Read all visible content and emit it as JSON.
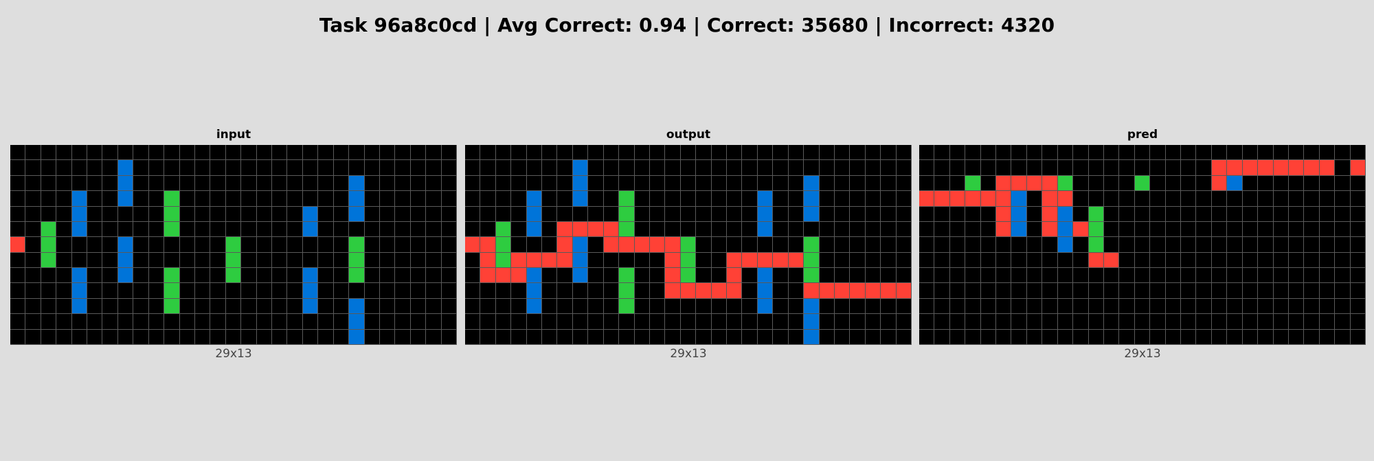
{
  "title": "Task 96a8c0cd | Avg Correct: 0.94 | Correct: 35680 | Incorrect: 4320",
  "palette": {
    "0": "#000000",
    "1": "#0074d9",
    "2": "#ff4136",
    "3": "#2ecc40"
  },
  "panels": [
    {
      "label": "input",
      "size_label": "29x13",
      "grid": [
        "00000000000000000000000000000",
        "00000001000000000000000000000",
        "00000001000000000000001000000",
        "00001001003000000000001000000",
        "00001000003000000001001000000",
        "00301000003000000001000000000",
        "20300001000000300000003000000",
        "00300001000000300000003000000",
        "00001001003000300001003000000",
        "00001000003000000001000000000",
        "00001000003000000001001000000",
        "00000000000000000000001000000",
        "00000000000000000000001000000"
      ]
    },
    {
      "label": "output",
      "size_label": "29x13",
      "grid": [
        "00000000000000000000000000000",
        "00000001000000000000000000000",
        "00000001000000000000001000000",
        "00001001003000000001001000000",
        "00001000003000000001001000000",
        "00301022223000000001000000000",
        "22300021022222300000003000000",
        "02322221000002300222223000000",
        "02221001003002300201003000000",
        "00001000003002222201002222222",
        "00001000003000000001001000000",
        "00000000000000000000001000000",
        "00000000000000000000001000000"
      ]
    },
    {
      "label": "pred",
      "size_label": "29x13",
      "grid": [
        "00000000000000000000000000000",
        "00000000000000000002222222202",
        "00030222230000300002100000000",
        "22222210220000000000000000000",
        "00000210210300000000000000000",
        "00000210212300000000000000000",
        "00000000010300000000000000000",
        "00000000000220000000000000000",
        "00000000000000000000000000000",
        "00000000000000000000000000000",
        "00000000000000000000000000000",
        "00000000000000000000000000000",
        "00000000000000000000000000000"
      ]
    }
  ]
}
